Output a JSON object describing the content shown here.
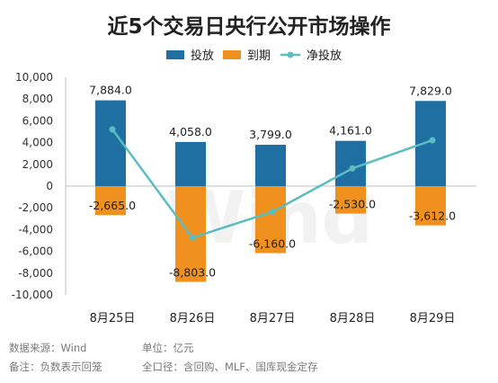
{
  "chart_data": {
    "type": "bar",
    "title": "近5个交易日央行公开市场操作",
    "categories": [
      "8月25日",
      "8月26日",
      "8月27日",
      "8月28日",
      "8月29日"
    ],
    "series": [
      {
        "name": "投放",
        "kind": "bar",
        "color": "#1f6fa3",
        "values": [
          7884.0,
          4058.0,
          3799.0,
          4161.0,
          7829.0
        ],
        "labels": [
          "7,884.0",
          "4,058.0",
          "3,799.0",
          "4,161.0",
          "7,829.0"
        ]
      },
      {
        "name": "到期",
        "kind": "bar",
        "color": "#f0901e",
        "values": [
          -2665.0,
          -8803.0,
          -6160.0,
          -2530.0,
          -3612.0
        ],
        "labels": [
          "-2,665.0",
          "-8,803.0",
          "-6,160.0",
          "-2,530.0",
          "-3,612.0"
        ]
      },
      {
        "name": "净投放",
        "kind": "line",
        "color": "#5bbdc0",
        "values": [
          5219.0,
          -4745.0,
          -2361.0,
          1631.0,
          4217.0
        ]
      }
    ],
    "ylim": [
      -10000,
      10000
    ],
    "yticks": [
      10000,
      8000,
      6000,
      4000,
      2000,
      0,
      -2000,
      -4000,
      -6000,
      -8000,
      -10000
    ],
    "ytick_labels": [
      "10,000",
      "8,000",
      "6,000",
      "4,000",
      "2,000",
      "0",
      "-2,000",
      "-4,000",
      "-6,000",
      "-8,000",
      "-10,000"
    ],
    "legend_position": "top",
    "grid": false
  },
  "footer": {
    "source": "数据来源：Wind",
    "unit": "单位：亿元",
    "note": "备注：负数表示回笼",
    "scope": "全口径：含回购、MLF、国库现金定存"
  },
  "watermark": "Wind"
}
